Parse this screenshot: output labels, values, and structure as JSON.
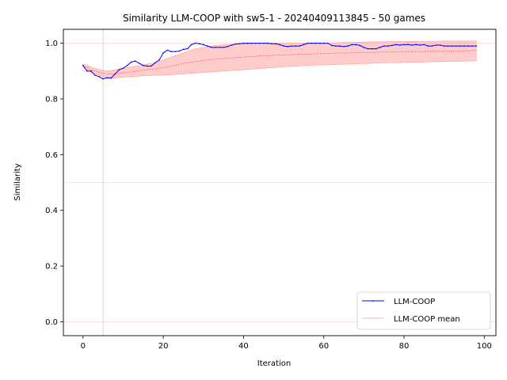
{
  "chart_data": {
    "type": "line",
    "title": "Similarity LLM-COOP with sw5-1 - 20240409113845 - 50 games",
    "xlabel": "Iteration",
    "ylabel": "Similarity",
    "xlim": [
      -4.9,
      102.9
    ],
    "ylim": [
      -0.05,
      1.05
    ],
    "xticks": [
      0,
      20,
      40,
      60,
      80,
      100
    ],
    "yticks": [
      0.0,
      0.2,
      0.4,
      0.6,
      0.8,
      1.0
    ],
    "xtick_labels": [
      "0",
      "20",
      "40",
      "60",
      "80",
      "100"
    ],
    "ytick_labels": [
      "0.0",
      "0.2",
      "0.4",
      "0.6",
      "0.8",
      "1.0"
    ],
    "reference_lines": {
      "vertical_x": 5,
      "horizontal_y": [
        0.0,
        0.5,
        1.0
      ]
    },
    "legend_position": "lower right",
    "colors": {
      "series": "#0000ff",
      "mean": "#ff0000",
      "band": "#ff9999",
      "reference": "#e8b4b4"
    },
    "series": [
      {
        "name": "LLM-COOP",
        "x": [
          0,
          1,
          2,
          3,
          4,
          5,
          6,
          7,
          8,
          9,
          10,
          11,
          12,
          13,
          14,
          15,
          16,
          17,
          18,
          19,
          20,
          21,
          22,
          23,
          24,
          25,
          26,
          27,
          28,
          29,
          30,
          31,
          32,
          33,
          34,
          35,
          36,
          37,
          38,
          39,
          40,
          41,
          42,
          43,
          44,
          45,
          46,
          47,
          48,
          49,
          50,
          51,
          52,
          53,
          54,
          55,
          56,
          57,
          58,
          59,
          60,
          61,
          62,
          63,
          64,
          65,
          66,
          67,
          68,
          69,
          70,
          71,
          72,
          73,
          74,
          75,
          76,
          77,
          78,
          79,
          80,
          81,
          82,
          83,
          84,
          85,
          86,
          87,
          88,
          89,
          90,
          91,
          92,
          93,
          94,
          95,
          96,
          97,
          98
        ],
        "values": [
          0.92,
          0.9,
          0.9,
          0.885,
          0.88,
          0.872,
          0.876,
          0.875,
          0.89,
          0.905,
          0.91,
          0.92,
          0.932,
          0.936,
          0.928,
          0.92,
          0.918,
          0.918,
          0.93,
          0.94,
          0.965,
          0.975,
          0.97,
          0.97,
          0.972,
          0.978,
          0.98,
          0.995,
          1.0,
          0.998,
          0.995,
          0.99,
          0.985,
          0.985,
          0.985,
          0.985,
          0.988,
          0.993,
          0.997,
          0.998,
          1.0,
          1.0,
          1.0,
          1.0,
          1.0,
          1.0,
          1.0,
          0.998,
          0.998,
          0.995,
          0.99,
          0.988,
          0.99,
          0.99,
          0.99,
          0.995,
          1.0,
          1.0,
          1.0,
          1.0,
          1.0,
          1.0,
          0.992,
          0.99,
          0.99,
          0.988,
          0.99,
          0.995,
          0.995,
          0.992,
          0.985,
          0.98,
          0.98,
          0.98,
          0.985,
          0.99,
          0.99,
          0.992,
          0.995,
          0.993,
          0.995,
          0.995,
          0.993,
          0.995,
          0.993,
          0.995,
          0.99,
          0.99,
          0.993,
          0.993,
          0.99,
          0.99,
          0.99,
          0.99,
          0.99,
          0.99,
          0.99,
          0.99,
          0.99
        ]
      },
      {
        "name": "LLM-COOP mean",
        "x": [
          0,
          2,
          4,
          6,
          8,
          10,
          12,
          14,
          16,
          18,
          20,
          22,
          24,
          26,
          28,
          30,
          32,
          34,
          36,
          38,
          40,
          42,
          44,
          46,
          48,
          50,
          52,
          54,
          56,
          58,
          60,
          62,
          64,
          66,
          68,
          70,
          72,
          74,
          76,
          78,
          80,
          82,
          84,
          86,
          88,
          90,
          92,
          94,
          96,
          98
        ],
        "values": [
          0.92,
          0.905,
          0.895,
          0.89,
          0.89,
          0.893,
          0.897,
          0.901,
          0.905,
          0.908,
          0.912,
          0.918,
          0.924,
          0.93,
          0.934,
          0.938,
          0.941,
          0.944,
          0.946,
          0.948,
          0.95,
          0.952,
          0.954,
          0.955,
          0.957,
          0.958,
          0.959,
          0.96,
          0.961,
          0.962,
          0.963,
          0.964,
          0.965,
          0.965,
          0.966,
          0.967,
          0.967,
          0.968,
          0.968,
          0.969,
          0.97,
          0.97,
          0.97,
          0.971,
          0.971,
          0.972,
          0.972,
          0.972,
          0.973,
          0.974
        ]
      }
    ],
    "band": {
      "x": [
        0,
        2,
        4,
        6,
        8,
        10,
        12,
        14,
        16,
        18,
        20,
        22,
        24,
        26,
        28,
        30,
        32,
        34,
        36,
        38,
        40,
        42,
        44,
        46,
        48,
        50,
        52,
        54,
        56,
        58,
        60,
        62,
        64,
        66,
        68,
        70,
        72,
        74,
        76,
        78,
        80,
        82,
        84,
        86,
        88,
        90,
        92,
        94,
        96,
        98
      ],
      "upper": [
        0.925,
        0.915,
        0.905,
        0.9,
        0.905,
        0.91,
        0.915,
        0.92,
        0.925,
        0.93,
        0.94,
        0.95,
        0.96,
        0.97,
        0.98,
        0.985,
        0.99,
        0.993,
        0.995,
        0.997,
        0.998,
        0.999,
        1.0,
        1.0,
        1.0,
        1.0,
        1.0,
        1.0,
        1.0,
        1.0,
        1.0,
        1.0,
        1.002,
        1.003,
        1.003,
        1.004,
        1.005,
        1.005,
        1.005,
        1.006,
        1.006,
        1.006,
        1.007,
        1.007,
        1.007,
        1.008,
        1.008,
        1.008,
        1.008,
        1.008
      ],
      "lower": [
        0.915,
        0.895,
        0.885,
        0.875,
        0.875,
        0.878,
        0.88,
        0.882,
        0.884,
        0.885,
        0.885,
        0.887,
        0.889,
        0.891,
        0.893,
        0.895,
        0.897,
        0.899,
        0.901,
        0.903,
        0.905,
        0.907,
        0.909,
        0.911,
        0.913,
        0.915,
        0.917,
        0.918,
        0.92,
        0.921,
        0.922,
        0.923,
        0.924,
        0.925,
        0.926,
        0.927,
        0.928,
        0.929,
        0.93,
        0.93,
        0.931,
        0.932,
        0.932,
        0.933,
        0.934,
        0.934,
        0.935,
        0.935,
        0.936,
        0.937
      ]
    }
  }
}
